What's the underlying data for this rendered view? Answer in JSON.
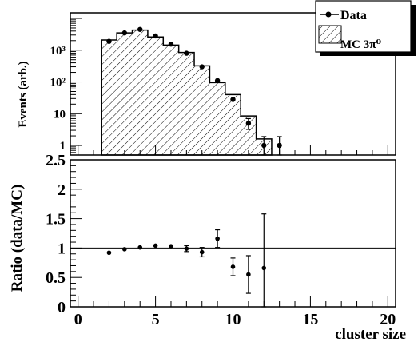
{
  "chart_data": [
    {
      "type": "bar",
      "yscale": "log",
      "ylabel": "Events (arb.)",
      "ylim": [
        0.5,
        15000
      ],
      "xlim": [
        -0.5,
        20.5
      ],
      "y_tick_labels": [
        {
          "value": 1,
          "label": "1"
        },
        {
          "value": 10,
          "label": "10"
        },
        {
          "value": 100,
          "label": "10²"
        },
        {
          "value": 1000,
          "label": "10³"
        }
      ],
      "legend": {
        "placement": "top-right",
        "entries": [
          {
            "label": "Data",
            "marker": "point-with-line"
          },
          {
            "label": "MC 3π⁰",
            "marker": "hatched-box"
          }
        ]
      },
      "series": [
        {
          "name": "MC 3π⁰",
          "kind": "hatched-histogram",
          "bin_width": 1,
          "x": [
            2,
            3,
            4,
            5,
            6,
            7,
            8,
            9,
            10,
            11,
            12
          ],
          "values": [
            2100,
            3500,
            4300,
            2600,
            1450,
            850,
            320,
            95,
            40,
            8.5,
            1.6
          ]
        },
        {
          "name": "Data",
          "kind": "points",
          "x": [
            2,
            3,
            4,
            5,
            6,
            7,
            8,
            9,
            10,
            11,
            12,
            13
          ],
          "values": [
            1900,
            3500,
            4500,
            2800,
            1550,
            800,
            300,
            110,
            28,
            5,
            1.0,
            1.0
          ],
          "err_low": [
            0,
            0,
            0,
            0,
            0,
            0,
            0,
            0,
            0,
            1.8,
            0.5,
            0.5
          ],
          "err_high": [
            0,
            0,
            0,
            0,
            0,
            0,
            0,
            0,
            0,
            2.0,
            0.9,
            0.9
          ]
        }
      ]
    },
    {
      "type": "scatter",
      "xlabel": "cluster size",
      "ylabel": "Ratio (data/MC)",
      "xlim": [
        -0.5,
        20.5
      ],
      "ylim": [
        0,
        2.5
      ],
      "x_ticks": [
        0,
        5,
        10,
        15,
        20
      ],
      "x_tick_labels": [
        "0",
        "5",
        "10",
        "15",
        "20"
      ],
      "y_ticks": [
        0,
        0.5,
        1,
        1.5,
        2,
        2.5
      ],
      "y_tick_labels": [
        "0",
        "0.5",
        "1",
        "1.5",
        "2",
        "2.5"
      ],
      "reference_line": 1,
      "series": [
        {
          "name": "Ratio",
          "x": [
            2,
            3,
            4,
            5,
            6,
            7,
            8,
            9,
            10,
            11,
            12
          ],
          "values": [
            0.92,
            0.98,
            1.01,
            1.04,
            1.03,
            0.99,
            0.93,
            1.16,
            0.68,
            0.55,
            0.66
          ],
          "err": [
            0.01,
            0.01,
            0.01,
            0.01,
            0.02,
            0.05,
            0.08,
            0.15,
            0.15,
            0.32,
            0.92
          ]
        }
      ]
    }
  ]
}
